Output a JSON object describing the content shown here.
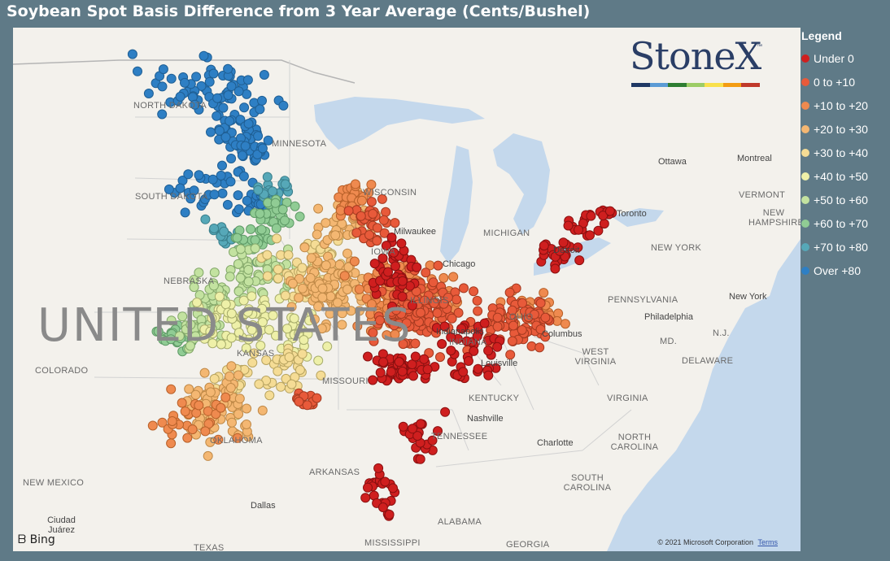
{
  "title": "Soybean Spot Basis Difference from 3 Year Average (Cents/Bushel)",
  "legend": {
    "title": "Legend",
    "items": [
      {
        "label": "Under 0",
        "color": "#cf1f1f"
      },
      {
        "label": "0 to +10",
        "color": "#e85a3a"
      },
      {
        "label": "+10 to +20",
        "color": "#ef8a4f"
      },
      {
        "label": "+20 to +30",
        "color": "#f4b772"
      },
      {
        "label": "+30 to +40",
        "color": "#f5dc95"
      },
      {
        "label": "+40 to +50",
        "color": "#eef0a8"
      },
      {
        "label": "+50 to +60",
        "color": "#c3e2a0"
      },
      {
        "label": "+60 to +70",
        "color": "#90cc94"
      },
      {
        "label": "+70 to +80",
        "color": "#56a8b8"
      },
      {
        "label": "Over +80",
        "color": "#2e7fc4"
      }
    ]
  },
  "logo": {
    "text": "StoneX",
    "tm": "™",
    "bar_colors": [
      "#1f3864",
      "#5b9bd5",
      "#2e7d32",
      "#9ccc65",
      "#f9e04b",
      "#f39c12",
      "#c0392b"
    ]
  },
  "map": {
    "country_label": "UNITED STATES",
    "states": [
      "NORTH DAKOTA",
      "MINNESOTA",
      "SOUTH DAKOTA",
      "WISCONSIN",
      "MICHIGAN",
      "NEBRASKA",
      "IOWA",
      "ILLINOIS",
      "INDIANA",
      "OHIO",
      "PENNSYLVANIA",
      "NEW YORK",
      "COLORADO",
      "KANSAS",
      "MISSOURI",
      "KENTUCKY",
      "WEST VIRGINIA",
      "VIRGINIA",
      "TENNESSEE",
      "NORTH CAROLINA",
      "SOUTH CAROLINA",
      "OKLAHOMA",
      "ARKANSAS",
      "NEW MEXICO",
      "TEXAS",
      "MISSISSIPPI",
      "ALABAMA",
      "GEORGIA",
      "VERMONT",
      "NEW HAMPSHIRE",
      "MD.",
      "DELAWARE",
      "N.J."
    ],
    "cities": [
      "Ottawa",
      "Montreal",
      "Toronto",
      "Chicago",
      "Milwaukee",
      "Detroit",
      "Columbus",
      "Indianapolis",
      "Louisville",
      "Nashville",
      "Charlotte",
      "Dallas",
      "Ciudad Juárez",
      "New York",
      "Philadelphia"
    ],
    "copyright": "© 2021 Microsoft Corporation",
    "terms": "Terms",
    "bing": "Bing"
  }
}
